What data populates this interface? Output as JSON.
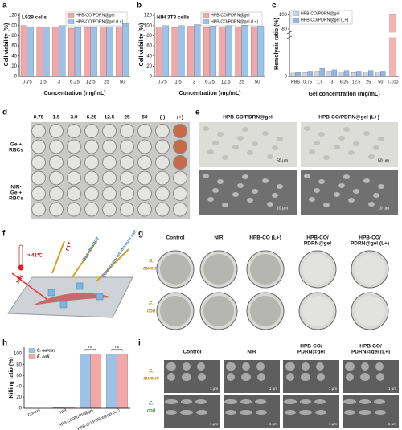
{
  "chart_data": [
    {
      "type": "bar",
      "title": "L929 cells",
      "x_label": "Concentration (mg/mL)",
      "y_label": "Cell viability (%)",
      "categories": [
        "0.75",
        "1.5",
        "3",
        "6.25",
        "12.5",
        "25",
        "50"
      ],
      "series": [
        {
          "name": "HPB-CO/PDRN@gel",
          "color": "#f4a7a7",
          "values": [
            100,
            98,
            98,
            95,
            96,
            97,
            98
          ]
        },
        {
          "name": "HPB-CO/PDRN@gel (L+)",
          "color": "#9cc2e8",
          "values": [
            98,
            97,
            100,
            96,
            96,
            98,
            104
          ]
        }
      ],
      "ylim": [
        0,
        125
      ],
      "yticks": [
        0,
        20,
        40,
        60,
        80,
        100,
        120
      ],
      "legend": "upper right"
    },
    {
      "type": "bar",
      "title": "NIH 3T3 cells",
      "x_label": "Concentration (mg/mL)",
      "y_label": "Cell viability (%)",
      "categories": [
        "0.75",
        "1.5",
        "3",
        "6.25",
        "12.5",
        "25",
        "50"
      ],
      "series": [
        {
          "name": "HPB-CO/PDRN@gel",
          "color": "#f4a7a7",
          "values": [
            97,
            96,
            99,
            96,
            97,
            97,
            98
          ]
        },
        {
          "name": "HPB-CO/PDRN@gel (L+)",
          "color": "#9cc2e8",
          "values": [
            100,
            100,
            102,
            99,
            100,
            101,
            99
          ]
        }
      ],
      "ylim": [
        0,
        125
      ],
      "yticks": [
        0,
        20,
        40,
        60,
        80,
        100,
        120
      ],
      "legend": "upper right"
    },
    {
      "type": "bar",
      "x_label": "Gel concentration (mg/mL)",
      "y_label": "Hemolysis ratio (%)",
      "categories": [
        "PBS",
        "0.75",
        "1.5",
        "3",
        "6.25",
        "12.5",
        "25",
        "50",
        "T-100"
      ],
      "series": [
        {
          "name": "HPB-CO/PDRN@gel",
          "color": "#c9d3e3",
          "colors": [
            "#c9d3e3",
            "#c9d3e3",
            "#c9d3e3",
            "#c9d3e3",
            "#c9d3e3",
            "#c9d3e3",
            "#c9d3e3",
            "#c9d3e3",
            "#f6b3b3"
          ],
          "values": [
            0.5,
            0.6,
            0.8,
            0.8,
            0.7,
            0.6,
            0.7,
            0.7,
            100
          ]
        },
        {
          "name": "HPB-CO/PDRN@gel (L+)",
          "color": "#8fb6e6",
          "values": [
            0.6,
            0.8,
            1.2,
            1.0,
            0.9,
            0.8,
            0.9,
            0.8,
            null
          ]
        }
      ],
      "ylim": [
        0,
        105
      ],
      "ybreak": [
        6,
        75
      ],
      "yticks": [
        0,
        80,
        100
      ],
      "legend": "upper left"
    },
    {
      "type": "bar",
      "y_label": "Killing ratio (%)",
      "categories": [
        "Control",
        "NIR",
        "HPB-CO/PDRN@gel",
        "HPB-CO/PDRN@gel (L+)"
      ],
      "series": [
        {
          "name": "S. aureus",
          "color": "#9cc2e8",
          "values": [
            0,
            1,
            99,
            99
          ]
        },
        {
          "name": "E. coli",
          "color": "#f4a7a7",
          "values": [
            0,
            2,
            99,
            99
          ]
        }
      ],
      "annotations": [
        "ns",
        "ns"
      ],
      "ylim": [
        0,
        112
      ],
      "yticks": [
        0,
        20,
        40,
        60,
        80,
        100
      ],
      "legend": "upper left"
    }
  ],
  "figure": {
    "panel_labels": [
      "a",
      "b",
      "c",
      "d",
      "e",
      "f",
      "g",
      "h",
      "i"
    ],
    "d": {
      "columns": [
        "0.75",
        "1.5",
        "3.0",
        "6.25",
        "12.5",
        "25",
        "50",
        "(-)",
        "(+)"
      ],
      "rows": [
        [
          "Gel+",
          "RBCs"
        ],
        [
          "NIR-",
          "Gel+",
          "RBCs"
        ]
      ]
    },
    "e": {
      "columns": [
        "HPB-CO/PDRN@gel",
        "HPB-CO/PDRN@gel (L+)"
      ],
      "scale_bars": [
        "50 μm",
        "10 μm"
      ]
    },
    "f": {
      "labels": [
        "> 41℃",
        "NIR",
        "PTT",
        "Gas therapy",
        "Quaternary ammonium salt"
      ]
    },
    "g": {
      "columns": [
        [
          "Control"
        ],
        [
          "NIR"
        ],
        [
          "HPB-CO (L+)"
        ],
        [
          "HPB-CO/",
          "PDRN@gel"
        ],
        [
          "HPB-CO/",
          "PDRN@gel (L+)"
        ]
      ],
      "rows": [
        [
          "S.",
          "aureus"
        ],
        [
          "E.",
          "coli"
        ]
      ]
    },
    "i": {
      "columns": [
        [
          "Control"
        ],
        [
          "NIR"
        ],
        [
          "HPB-CO/",
          "PDRN@gel"
        ],
        [
          "HPB-CO/",
          "PDRN@gel (L+)"
        ]
      ],
      "rows": [
        [
          "S.",
          "aureus"
        ],
        [
          "E.",
          "coli"
        ]
      ],
      "scale_bar": "1 μm"
    }
  }
}
